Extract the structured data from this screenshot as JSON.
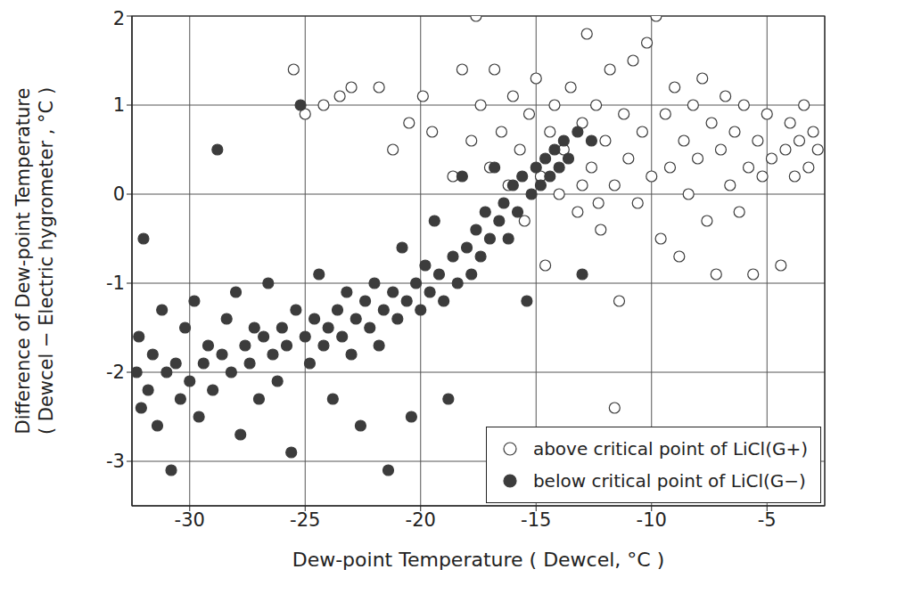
{
  "chart_data": {
    "type": "scatter",
    "xlabel": "Dew-point Temperature ( Dewcel, °C )",
    "ylabel": [
      "Difference of Dew-point Temperature",
      "( Dewcel − Electric hygrometer , °C )"
    ],
    "xlim": [
      -32.5,
      -2.5
    ],
    "ylim": [
      -3.5,
      2
    ],
    "xticks": [
      -30,
      -25,
      -20,
      -15,
      -10,
      -5
    ],
    "yticks": [
      -3,
      -2,
      -1,
      0,
      1,
      2
    ],
    "grid": true,
    "legend": "lower right",
    "series": [
      {
        "name": "above critical point of LiCl(G+)",
        "color": "#3c3c3c",
        "marker": "open",
        "x": [
          -25.5,
          -25.0,
          -24.2,
          -23.5,
          -23.0,
          -21.8,
          -21.2,
          -20.5,
          -19.9,
          -19.5,
          -18.6,
          -18.2,
          -17.8,
          -17.6,
          -17.4,
          -17.0,
          -16.8,
          -16.5,
          -16.2,
          -16.0,
          -15.7,
          -15.5,
          -15.3,
          -15.0,
          -14.8,
          -14.6,
          -14.4,
          -14.2,
          -14.0,
          -13.8,
          -13.5,
          -13.2,
          -13.0,
          -12.8,
          -12.6,
          -12.4,
          -12.2,
          -12.0,
          -11.8,
          -11.6,
          -11.4,
          -11.2,
          -11.0,
          -10.8,
          -10.6,
          -10.4,
          -10.2,
          -10.0,
          -9.8,
          -9.6,
          -9.4,
          -9.2,
          -9.0,
          -8.8,
          -8.6,
          -8.4,
          -8.2,
          -8.0,
          -7.8,
          -7.6,
          -7.4,
          -7.2,
          -7.0,
          -6.8,
          -6.6,
          -6.4,
          -6.2,
          -6.0,
          -5.8,
          -5.6,
          -5.4,
          -5.2,
          -5.0,
          -4.8,
          -4.4,
          -4.2,
          -4.0,
          -3.8,
          -3.6,
          -3.4,
          -3.2,
          -3.0,
          -2.8,
          -11.6,
          -12.3,
          -13.0
        ],
        "values": [
          1.4,
          0.9,
          1.0,
          1.1,
          1.2,
          1.2,
          0.5,
          0.8,
          1.1,
          0.7,
          0.2,
          1.4,
          0.6,
          2.0,
          1.0,
          0.3,
          1.4,
          0.7,
          0.1,
          1.1,
          0.5,
          -0.3,
          0.9,
          1.3,
          0.2,
          -0.8,
          0.7,
          1.0,
          0.0,
          0.5,
          1.2,
          -0.2,
          0.8,
          1.8,
          0.3,
          1.0,
          -0.4,
          0.6,
          1.4,
          0.1,
          -1.2,
          0.9,
          0.4,
          1.5,
          -0.1,
          0.7,
          1.7,
          0.2,
          2.0,
          -0.5,
          0.9,
          0.3,
          1.2,
          -0.7,
          0.6,
          0.0,
          1.0,
          0.4,
          1.3,
          -0.3,
          0.8,
          -0.9,
          0.5,
          1.1,
          0.1,
          0.7,
          -0.2,
          1.0,
          0.3,
          -0.9,
          0.6,
          0.2,
          0.9,
          0.4,
          -0.8,
          0.5,
          0.8,
          0.2,
          0.6,
          1.0,
          0.3,
          0.7,
          0.5,
          -2.4,
          -0.1,
          0.1
        ]
      },
      {
        "name": "below critical point of LiCl(G−)",
        "color": "#3c3c3c",
        "marker": "filled",
        "x": [
          -32.3,
          -32.2,
          -32.1,
          -32.0,
          -31.8,
          -31.6,
          -31.4,
          -31.2,
          -31.0,
          -30.8,
          -30.6,
          -30.4,
          -30.2,
          -30.0,
          -29.8,
          -29.6,
          -29.4,
          -29.2,
          -29.0,
          -28.8,
          -28.6,
          -28.4,
          -28.2,
          -28.0,
          -27.8,
          -27.6,
          -27.4,
          -27.2,
          -27.0,
          -26.8,
          -26.6,
          -26.4,
          -26.2,
          -26.0,
          -25.8,
          -25.6,
          -25.4,
          -25.2,
          -25.0,
          -24.8,
          -24.6,
          -24.4,
          -24.2,
          -24.0,
          -23.8,
          -23.6,
          -23.4,
          -23.2,
          -23.0,
          -22.8,
          -22.6,
          -22.4,
          -22.2,
          -22.0,
          -21.8,
          -21.6,
          -21.4,
          -21.2,
          -21.0,
          -20.8,
          -20.6,
          -20.4,
          -20.2,
          -20.0,
          -19.8,
          -19.6,
          -19.4,
          -19.2,
          -19.0,
          -18.8,
          -18.6,
          -18.4,
          -18.2,
          -18.0,
          -17.8,
          -17.6,
          -17.4,
          -17.2,
          -17.0,
          -16.8,
          -16.6,
          -16.4,
          -16.2,
          -16.0,
          -15.8,
          -15.6,
          -15.4,
          -15.2,
          -15.0,
          -14.8,
          -14.6,
          -14.4,
          -14.2,
          -14.0,
          -13.8,
          -13.6,
          -13.2,
          -13.0,
          -12.6
        ],
        "values": [
          -2.0,
          -1.6,
          -2.4,
          -0.5,
          -2.2,
          -1.8,
          -2.6,
          -1.3,
          -2.0,
          -3.1,
          -1.9,
          -2.3,
          -1.5,
          -2.1,
          -1.2,
          -2.5,
          -1.9,
          -1.7,
          -2.2,
          0.5,
          -1.8,
          -1.4,
          -2.0,
          -1.1,
          -2.7,
          -1.7,
          -1.9,
          -1.5,
          -2.3,
          -1.6,
          -1.0,
          -1.8,
          -2.1,
          -1.5,
          -1.7,
          -2.9,
          -1.3,
          1.0,
          -1.6,
          -1.9,
          -1.4,
          -0.9,
          -1.7,
          -1.5,
          -2.3,
          -1.3,
          -1.6,
          -1.1,
          -1.8,
          -1.4,
          -2.6,
          -1.2,
          -1.5,
          -1.0,
          -1.7,
          -1.3,
          -3.1,
          -1.1,
          -1.4,
          -0.6,
          -1.2,
          -2.5,
          -1.0,
          -1.3,
          -0.8,
          -1.1,
          -0.3,
          -0.9,
          -1.2,
          -2.3,
          -0.7,
          -1.0,
          0.2,
          -0.6,
          -0.9,
          -0.4,
          -0.7,
          -0.2,
          -0.5,
          0.3,
          -0.3,
          -0.1,
          -0.5,
          0.1,
          -0.2,
          0.2,
          -1.2,
          0.0,
          0.3,
          0.1,
          0.4,
          0.2,
          0.5,
          0.3,
          0.6,
          0.4,
          0.7,
          -0.9,
          0.6
        ]
      }
    ]
  }
}
